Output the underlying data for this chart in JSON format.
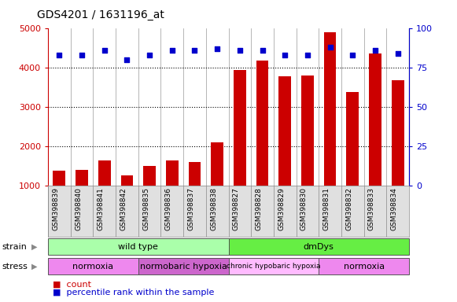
{
  "title": "GDS4201 / 1631196_at",
  "samples": [
    "GSM398839",
    "GSM398840",
    "GSM398841",
    "GSM398842",
    "GSM398835",
    "GSM398836",
    "GSM398837",
    "GSM398838",
    "GSM398827",
    "GSM398828",
    "GSM398829",
    "GSM398830",
    "GSM398831",
    "GSM398832",
    "GSM398833",
    "GSM398834"
  ],
  "counts": [
    1380,
    1400,
    1640,
    1270,
    1510,
    1640,
    1610,
    2100,
    3950,
    4180,
    3780,
    3800,
    4900,
    3380,
    4360,
    3680
  ],
  "percentile_ranks": [
    83,
    83,
    86,
    80,
    83,
    86,
    86,
    87,
    86,
    86,
    83,
    83,
    88,
    83,
    86,
    84
  ],
  "ylim_left": [
    1000,
    5000
  ],
  "ylim_right": [
    0,
    100
  ],
  "yticks_left": [
    1000,
    2000,
    3000,
    4000,
    5000
  ],
  "yticks_right": [
    0,
    25,
    50,
    75,
    100
  ],
  "bar_color": "#cc0000",
  "dot_color": "#0000cc",
  "bar_width": 0.55,
  "dot_size": 20,
  "strain_groups": [
    {
      "label": "wild type",
      "start": 0,
      "end": 8,
      "color": "#aaffaa"
    },
    {
      "label": "dmDys",
      "start": 8,
      "end": 16,
      "color": "#66ee44"
    }
  ],
  "stress_groups": [
    {
      "label": "normoxia",
      "start": 0,
      "end": 4,
      "color": "#ee88ee",
      "fontsize": 8
    },
    {
      "label": "normobaric hypoxia",
      "start": 4,
      "end": 8,
      "color": "#cc66cc",
      "fontsize": 8
    },
    {
      "label": "chronic hypobaric hypoxia",
      "start": 8,
      "end": 12,
      "color": "#ffbbff",
      "fontsize": 6.5
    },
    {
      "label": "normoxia",
      "start": 12,
      "end": 16,
      "color": "#ee88ee",
      "fontsize": 8
    }
  ],
  "legend_count_color": "#cc0000",
  "legend_pct_color": "#0000cc",
  "grid_color": "black",
  "grid_linestyle": ":",
  "grid_linewidth": 0.8,
  "sep_color": "#999999",
  "sep_linewidth": 0.5,
  "title_fontsize": 10,
  "tick_fontsize": 8,
  "sample_fontsize": 6.5,
  "legend_fontsize": 8,
  "row_label_fontsize": 8,
  "row_text_fontsize": 8
}
